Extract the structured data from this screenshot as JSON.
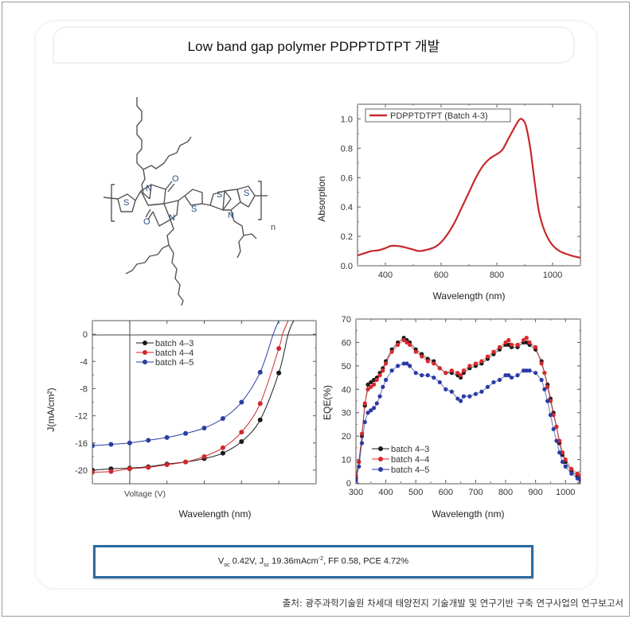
{
  "title": "Low band gap polymer PDPPTDTPT 개발",
  "molecule": {
    "name": "PDPPTDTPT",
    "atom_labels": {
      "S": "S",
      "N": "N",
      "O": "O",
      "repeat": "n"
    }
  },
  "result": {
    "voc_label": "V",
    "voc_sub": "oc",
    "voc_value": " 0.42V, ",
    "jsc_label": "J",
    "jsc_sub": "sc",
    "jsc_value": " 19.36mAcm",
    "jsc_sup": "-2",
    "rest": ", FF 0.58, PCE 4.72%"
  },
  "source": "출처: 광주과학기술원 차세대 태양전지 기술개발 및 연구기반 구축 연구사업의 연구보고서",
  "chart_data": [
    {
      "type": "line",
      "id": "absorption",
      "title": "",
      "xlabel": "Wavelength (nm)",
      "ylabel": "Absorption",
      "xlim": [
        300,
        1100
      ],
      "ylim": [
        0,
        1.1
      ],
      "xticks": [
        400,
        600,
        800,
        1000
      ],
      "xtick_labels": [
        "400",
        "600",
        "800",
        "1000"
      ],
      "yticks": [
        0,
        0.2,
        0.4,
        0.6,
        0.8,
        1.0
      ],
      "ytick_labels": [
        "0.0",
        "0.2",
        "0.4",
        "0.6",
        "0.8",
        "1.0"
      ],
      "legend": "top-left",
      "grid": false,
      "series": [
        {
          "name": "PDPPTDTPT (Batch 4-3)",
          "color": "#c8282e",
          "x": [
            300,
            325,
            350,
            375,
            400,
            420,
            440,
            460,
            480,
            500,
            520,
            540,
            560,
            580,
            600,
            625,
            650,
            675,
            700,
            725,
            750,
            775,
            800,
            820,
            840,
            860,
            875,
            885,
            895,
            905,
            920,
            935,
            950,
            965,
            980,
            1000,
            1025,
            1050,
            1075,
            1100
          ],
          "y": [
            0.07,
            0.085,
            0.1,
            0.105,
            0.12,
            0.135,
            0.135,
            0.13,
            0.12,
            0.11,
            0.1,
            0.105,
            0.115,
            0.13,
            0.16,
            0.22,
            0.3,
            0.4,
            0.5,
            0.6,
            0.68,
            0.73,
            0.76,
            0.79,
            0.86,
            0.93,
            0.98,
            1.0,
            0.99,
            0.95,
            0.8,
            0.58,
            0.38,
            0.27,
            0.2,
            0.14,
            0.1,
            0.08,
            0.065,
            0.055
          ]
        }
      ]
    },
    {
      "type": "line",
      "id": "jv",
      "title": "",
      "xlabel": "Wavelength (nm)",
      "inner_xlabel": "Voltage (V)",
      "ylabel": "J(mA/cm²)",
      "xlim": [
        -0.1,
        0.5
      ],
      "ylim": [
        -22,
        2
      ],
      "yticks": [
        0,
        -4,
        -8,
        -12,
        -16,
        -20
      ],
      "ytick_labels": [
        "0",
        "-4",
        "-8",
        "-12",
        "-16",
        "-20"
      ],
      "legend": "top-left",
      "grid": false,
      "series": [
        {
          "name": "batch 4-3",
          "color": "#1a1a1a",
          "x": [
            -0.1,
            -0.05,
            0,
            0.05,
            0.1,
            0.15,
            0.2,
            0.25,
            0.3,
            0.35,
            0.4,
            0.425,
            0.44
          ],
          "y": [
            -20.0,
            -19.8,
            -19.7,
            -19.5,
            -19.1,
            -18.8,
            -18.3,
            -17.5,
            -15.8,
            -12.6,
            -5.7,
            0,
            2
          ]
        },
        {
          "name": "batch 4-4",
          "color": "#d0282e",
          "x": [
            -0.1,
            -0.05,
            0,
            0.05,
            0.1,
            0.15,
            0.2,
            0.25,
            0.3,
            0.35,
            0.4,
            0.41,
            0.425
          ],
          "y": [
            -20.3,
            -20.2,
            -19.8,
            -19.6,
            -19.2,
            -18.8,
            -18.0,
            -16.7,
            -14.4,
            -10.2,
            -2.1,
            0,
            2
          ]
        },
        {
          "name": "batch 4-5",
          "color": "#2a3ea0",
          "x": [
            -0.1,
            -0.05,
            0,
            0.05,
            0.1,
            0.15,
            0.2,
            0.25,
            0.3,
            0.35,
            0.385,
            0.4
          ],
          "y": [
            -16.4,
            -16.2,
            -16.0,
            -15.6,
            -15.2,
            -14.6,
            -13.8,
            -12.4,
            -10.0,
            -5.6,
            0,
            2
          ]
        }
      ]
    },
    {
      "type": "line",
      "id": "eqe",
      "title": "",
      "xlabel": "Wavelength (nm)",
      "ylabel": "EQE(%)",
      "xlim": [
        300,
        1050
      ],
      "ylim": [
        0,
        70
      ],
      "xticks": [
        300,
        400,
        500,
        600,
        700,
        800,
        900,
        1000
      ],
      "xtick_labels": [
        "300",
        "400",
        "500",
        "600",
        "700",
        "800",
        "900",
        "1000"
      ],
      "yticks": [
        0,
        10,
        20,
        30,
        40,
        50,
        60,
        70
      ],
      "ytick_labels": [
        "0",
        "10",
        "20",
        "30",
        "40",
        "50",
        "60",
        "70"
      ],
      "legend": "bottom-left",
      "grid": false,
      "series": [
        {
          "name": "batch 4-3",
          "color": "#1a1a1a",
          "x": [
            300,
            310,
            320,
            330,
            340,
            350,
            360,
            370,
            380,
            390,
            400,
            420,
            440,
            460,
            470,
            480,
            500,
            520,
            540,
            560,
            580,
            600,
            620,
            640,
            650,
            660,
            680,
            700,
            720,
            740,
            760,
            780,
            800,
            810,
            820,
            840,
            860,
            870,
            880,
            900,
            920,
            930,
            940,
            950,
            960,
            970,
            980,
            990,
            1000,
            1020,
            1040,
            1050
          ],
          "y": [
            2,
            9,
            20,
            33,
            42,
            43,
            44,
            45,
            47,
            49,
            52,
            57,
            60,
            62,
            61,
            60,
            57,
            55,
            53,
            52,
            49,
            47,
            47,
            46,
            45,
            47,
            49,
            50,
            51,
            53,
            55,
            57,
            59,
            59,
            58,
            58,
            60,
            60,
            59,
            57,
            52,
            47,
            42,
            36,
            30,
            24,
            17,
            12,
            9,
            5,
            3,
            2
          ]
        },
        {
          "name": "batch 4-4",
          "color": "#d8282c",
          "x": [
            300,
            310,
            320,
            330,
            340,
            350,
            360,
            370,
            380,
            390,
            400,
            420,
            440,
            460,
            470,
            480,
            500,
            520,
            540,
            560,
            580,
            600,
            620,
            640,
            650,
            660,
            680,
            700,
            720,
            740,
            760,
            780,
            800,
            810,
            820,
            840,
            860,
            870,
            880,
            900,
            920,
            930,
            940,
            950,
            960,
            970,
            980,
            990,
            1000,
            1020,
            1040,
            1050
          ],
          "y": [
            3,
            9,
            21,
            34,
            40,
            41,
            42,
            44,
            46,
            48,
            51,
            56,
            59,
            61,
            60,
            59,
            56,
            54,
            52,
            51,
            49,
            47,
            48,
            47,
            46,
            48,
            50,
            51,
            52,
            54,
            56,
            58,
            60,
            61,
            59,
            59,
            61,
            62,
            60,
            58,
            51,
            47,
            41,
            35,
            29,
            24,
            18,
            13,
            10,
            6,
            4,
            3
          ]
        },
        {
          "name": "batch 4-5",
          "color": "#2a3aa5",
          "x": [
            300,
            310,
            320,
            330,
            340,
            350,
            360,
            370,
            380,
            390,
            400,
            420,
            440,
            460,
            470,
            480,
            500,
            520,
            540,
            560,
            580,
            600,
            620,
            640,
            650,
            660,
            680,
            700,
            720,
            740,
            760,
            780,
            800,
            810,
            820,
            840,
            860,
            870,
            880,
            900,
            920,
            930,
            940,
            950,
            960,
            970,
            980,
            990,
            1000,
            1020,
            1040,
            1050
          ],
          "y": [
            1,
            7,
            17,
            26,
            30,
            31,
            32,
            34,
            37,
            41,
            44,
            48,
            50,
            51,
            51,
            50,
            47,
            46,
            46,
            45,
            43,
            40,
            39,
            36,
            35,
            37,
            37,
            38,
            39,
            41,
            43,
            44,
            46,
            46,
            45,
            46,
            48,
            48,
            48,
            47,
            44,
            40,
            35,
            29,
            23,
            18,
            13,
            9,
            7,
            4,
            2,
            1
          ]
        }
      ]
    }
  ]
}
